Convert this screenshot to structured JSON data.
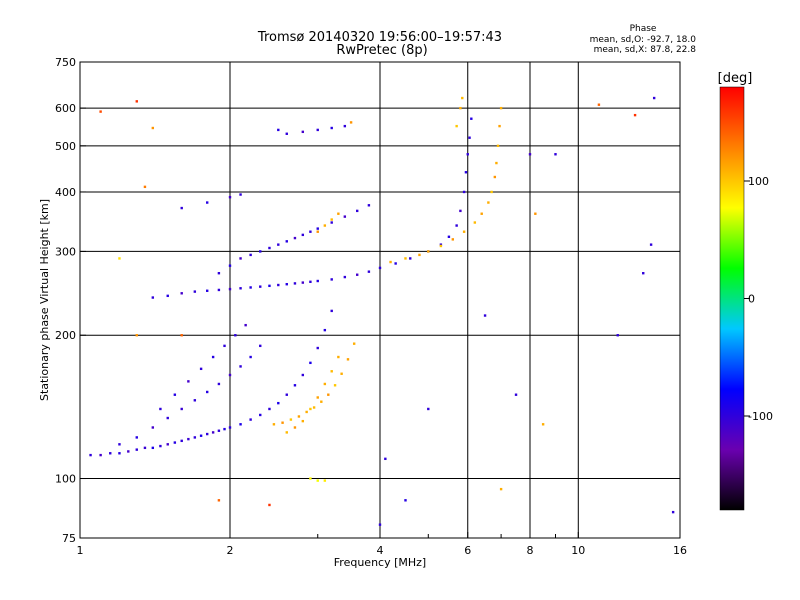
{
  "header": {
    "title_line1": "Tromsø 20140320 19:56:00–19:57:43",
    "title_line2": "RwPretec (8p)"
  },
  "phase_box": {
    "title": "Phase",
    "line1": "mean, sd,O: -92.7, 18.0",
    "line2": "mean, sd,X:  87.8, 22.8"
  },
  "colorbar": {
    "unit": "[deg]",
    "range": [
      -180,
      180
    ],
    "ticks": [
      {
        "value": 100,
        "label": "100"
      },
      {
        "value": 0,
        "label": "0"
      },
      {
        "value": -100,
        "label": "-100"
      }
    ],
    "colors": [
      "#000000",
      "#6a00b0",
      "#0000ff",
      "#00c8ff",
      "#00ff00",
      "#ffff00",
      "#ff8000",
      "#ff0000"
    ]
  },
  "chart_data": {
    "type": "scatter",
    "xlabel": "Frequency [MHz]",
    "ylabel": "Stationary phase Virtual Height [km]",
    "x_scale": "log",
    "y_scale": "log",
    "xlim": [
      1,
      16
    ],
    "ylim": [
      75,
      750
    ],
    "x_ticks": [
      {
        "value": 1,
        "label": "1"
      },
      {
        "value": 2,
        "label": "2"
      },
      {
        "value": 4,
        "label": "4"
      },
      {
        "value": 6,
        "label": "6"
      },
      {
        "value": 8,
        "label": "8"
      },
      {
        "value": 10,
        "label": "10"
      },
      {
        "value": 16,
        "label": "16"
      }
    ],
    "x_minor_ticks": [
      3,
      5,
      7,
      9
    ],
    "y_ticks": [
      {
        "value": 75,
        "label": "75"
      },
      {
        "value": 100,
        "label": "100"
      },
      {
        "value": 200,
        "label": "200"
      },
      {
        "value": 300,
        "label": "300"
      },
      {
        "value": 400,
        "label": "400"
      },
      {
        "value": 500,
        "label": "500"
      },
      {
        "value": 600,
        "label": "600"
      },
      {
        "value": 750,
        "label": "750"
      }
    ],
    "x_grid": [
      2,
      4,
      6,
      8,
      10
    ],
    "y_grid": [
      100,
      200,
      300,
      400,
      500,
      600
    ],
    "grid": true,
    "series": [
      {
        "description": "O-mode lower trace",
        "points": [
          [
            1.05,
            112,
            -100
          ],
          [
            1.1,
            112,
            -110
          ],
          [
            1.15,
            113,
            -100
          ],
          [
            1.2,
            113,
            -95
          ],
          [
            1.25,
            114,
            -110
          ],
          [
            1.3,
            115,
            -100
          ],
          [
            1.35,
            116,
            -105
          ],
          [
            1.4,
            116,
            -90
          ],
          [
            1.45,
            117,
            -100
          ],
          [
            1.5,
            118,
            -110
          ],
          [
            1.55,
            119,
            -95
          ],
          [
            1.6,
            120,
            -100
          ],
          [
            1.65,
            121,
            -105
          ],
          [
            1.7,
            122,
            -100
          ],
          [
            1.75,
            123,
            -90
          ],
          [
            1.8,
            124,
            -100
          ],
          [
            1.85,
            125,
            -110
          ],
          [
            1.9,
            126,
            -100
          ],
          [
            1.95,
            127,
            -95
          ],
          [
            2.0,
            128,
            -100
          ],
          [
            2.1,
            130,
            -90
          ],
          [
            2.2,
            133,
            -100
          ],
          [
            2.3,
            136,
            -95
          ],
          [
            2.4,
            140,
            -100
          ],
          [
            2.5,
            144,
            -90
          ],
          [
            2.6,
            150,
            -100
          ],
          [
            2.7,
            157,
            -95
          ],
          [
            2.8,
            165,
            -100
          ],
          [
            2.9,
            175,
            -90
          ],
          [
            3.0,
            188,
            -100
          ],
          [
            3.1,
            205,
            -95
          ],
          [
            3.2,
            225,
            -100
          ],
          [
            1.2,
            118,
            -100
          ],
          [
            1.3,
            122,
            -95
          ],
          [
            1.4,
            128,
            -110
          ],
          [
            1.5,
            134,
            -100
          ],
          [
            1.6,
            140,
            -105
          ],
          [
            1.7,
            146,
            -100
          ],
          [
            1.8,
            152,
            -95
          ],
          [
            1.9,
            158,
            -100
          ],
          [
            2.0,
            165,
            -110
          ],
          [
            2.1,
            172,
            -100
          ],
          [
            2.2,
            180,
            -95
          ],
          [
            2.3,
            190,
            -100
          ],
          [
            1.45,
            140,
            -100
          ],
          [
            1.55,
            150,
            -95
          ],
          [
            1.65,
            160,
            -110
          ],
          [
            1.75,
            170,
            -100
          ],
          [
            1.85,
            180,
            -95
          ],
          [
            1.95,
            190,
            -100
          ],
          [
            2.05,
            200,
            -100
          ],
          [
            2.15,
            210,
            -110
          ]
        ]
      },
      {
        "description": "X-mode lower trace",
        "points": [
          [
            2.45,
            130,
            110
          ],
          [
            2.55,
            131,
            120
          ],
          [
            2.65,
            133,
            100
          ],
          [
            2.75,
            135,
            115
          ],
          [
            2.85,
            138,
            110
          ],
          [
            2.95,
            141,
            105
          ],
          [
            3.05,
            145,
            110
          ],
          [
            3.15,
            150,
            120
          ],
          [
            3.25,
            157,
            100
          ],
          [
            3.35,
            166,
            110
          ],
          [
            3.45,
            178,
            115
          ],
          [
            3.55,
            192,
            110
          ],
          [
            2.6,
            125,
            105
          ],
          [
            2.7,
            128,
            120
          ],
          [
            2.8,
            132,
            110
          ],
          [
            2.9,
            140,
            100
          ],
          [
            3.0,
            148,
            115
          ],
          [
            3.1,
            158,
            110
          ],
          [
            3.2,
            168,
            105
          ],
          [
            3.3,
            180,
            110
          ],
          [
            2.9,
            100,
            80
          ],
          [
            3.0,
            99,
            75
          ],
          [
            3.1,
            99,
            85
          ]
        ]
      },
      {
        "description": "O-mode F2 trace",
        "points": [
          [
            1.4,
            240,
            -100
          ],
          [
            1.5,
            242,
            -95
          ],
          [
            1.6,
            245,
            -110
          ],
          [
            1.7,
            247,
            -100
          ],
          [
            1.8,
            248,
            -95
          ],
          [
            1.9,
            249,
            -100
          ],
          [
            2.0,
            250,
            -110
          ],
          [
            2.1,
            251,
            -100
          ],
          [
            2.2,
            252,
            -95
          ],
          [
            2.3,
            253,
            -100
          ],
          [
            2.4,
            254,
            -90
          ],
          [
            2.5,
            255,
            -100
          ],
          [
            2.6,
            256,
            -95
          ],
          [
            2.7,
            257,
            -100
          ],
          [
            2.8,
            258,
            -110
          ],
          [
            2.9,
            259,
            -100
          ],
          [
            3.0,
            260,
            -95
          ],
          [
            3.2,
            262,
            -100
          ],
          [
            3.4,
            265,
            -100
          ],
          [
            3.6,
            268,
            -110
          ],
          [
            3.8,
            272,
            -100
          ],
          [
            4.0,
            277,
            -100
          ],
          [
            4.3,
            283,
            -95
          ],
          [
            4.6,
            290,
            -100
          ],
          [
            5.0,
            300,
            -105
          ],
          [
            5.3,
            310,
            -100
          ],
          [
            5.5,
            322,
            -95
          ],
          [
            5.7,
            340,
            -100
          ],
          [
            5.8,
            365,
            -110
          ],
          [
            5.9,
            400,
            -100
          ],
          [
            5.95,
            440,
            -95
          ],
          [
            6.0,
            480,
            -100
          ],
          [
            6.05,
            520,
            -100
          ],
          [
            6.1,
            570,
            -95
          ],
          [
            1.9,
            270,
            -100
          ],
          [
            2.0,
            280,
            -95
          ],
          [
            2.1,
            290,
            -110
          ],
          [
            2.2,
            295,
            -100
          ],
          [
            2.3,
            300,
            -95
          ],
          [
            2.4,
            305,
            -100
          ],
          [
            2.5,
            310,
            -100
          ],
          [
            2.6,
            315,
            -95
          ],
          [
            2.7,
            320,
            -110
          ],
          [
            2.8,
            325,
            -100
          ],
          [
            2.9,
            330,
            -100
          ],
          [
            3.0,
            335,
            -95
          ],
          [
            3.2,
            345,
            -100
          ],
          [
            3.4,
            355,
            -110
          ],
          [
            3.6,
            365,
            -100
          ],
          [
            3.8,
            375,
            -100
          ],
          [
            1.6,
            370,
            -100
          ],
          [
            1.8,
            380,
            -95
          ],
          [
            2.0,
            390,
            -110
          ],
          [
            2.1,
            395,
            -100
          ],
          [
            2.5,
            540,
            -95
          ],
          [
            2.6,
            530,
            -100
          ],
          [
            2.8,
            535,
            -110
          ],
          [
            3.0,
            540,
            -100
          ],
          [
            3.2,
            545,
            -95
          ],
          [
            3.4,
            550,
            -100
          ]
        ]
      },
      {
        "description": "X-mode F2 trace",
        "points": [
          [
            4.2,
            285,
            110
          ],
          [
            4.5,
            290,
            105
          ],
          [
            4.8,
            295,
            115
          ],
          [
            5.0,
            300,
            110
          ],
          [
            5.3,
            308,
            100
          ],
          [
            5.6,
            318,
            120
          ],
          [
            5.9,
            330,
            110
          ],
          [
            6.2,
            345,
            105
          ],
          [
            6.4,
            360,
            115
          ],
          [
            6.6,
            380,
            110
          ],
          [
            6.7,
            400,
            100
          ],
          [
            6.8,
            430,
            120
          ],
          [
            6.85,
            460,
            110
          ],
          [
            6.9,
            500,
            105
          ],
          [
            6.95,
            550,
            115
          ],
          [
            7.0,
            600,
            110
          ],
          [
            3.0,
            330,
            120
          ],
          [
            3.1,
            340,
            110
          ],
          [
            3.2,
            350,
            105
          ],
          [
            3.3,
            360,
            115
          ],
          [
            5.7,
            550,
            100
          ],
          [
            5.8,
            600,
            110
          ],
          [
            5.85,
            630,
            105
          ]
        ]
      }
    ],
    "scattered_points": [
      [
        1.1,
        590,
        150
      ],
      [
        1.3,
        620,
        160
      ],
      [
        1.35,
        410,
        130
      ],
      [
        1.4,
        545,
        120
      ],
      [
        1.9,
        90,
        140
      ],
      [
        2.4,
        88,
        160
      ],
      [
        3.5,
        560,
        120
      ],
      [
        4.0,
        80,
        -100
      ],
      [
        4.1,
        110,
        -100
      ],
      [
        4.5,
        90,
        -95
      ],
      [
        5.0,
        140,
        -100
      ],
      [
        6.5,
        220,
        -100
      ],
      [
        7.0,
        95,
        110
      ],
      [
        7.5,
        150,
        -100
      ],
      [
        8.0,
        480,
        -110
      ],
      [
        8.2,
        360,
        120
      ],
      [
        8.5,
        130,
        110
      ],
      [
        9.0,
        480,
        -100
      ],
      [
        11.0,
        610,
        140
      ],
      [
        12.0,
        200,
        -100
      ],
      [
        13.0,
        580,
        160
      ],
      [
        13.5,
        270,
        -100
      ],
      [
        14.0,
        310,
        -100
      ],
      [
        14.2,
        630,
        -100
      ],
      [
        15.5,
        85,
        -100
      ],
      [
        1.2,
        290,
        90
      ],
      [
        1.3,
        200,
        120
      ],
      [
        1.6,
        200,
        140
      ]
    ]
  }
}
